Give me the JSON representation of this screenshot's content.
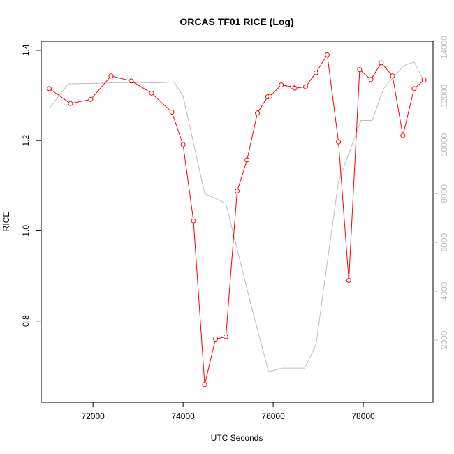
{
  "chart_data": {
    "type": "line",
    "title": "ORCAS TF01 RICE (Log)",
    "xlabel": "UTC Seconds",
    "ylabel": "RICE",
    "xlim": [
      70850,
      79550
    ],
    "ylim": [
      0.62,
      1.42
    ],
    "ylim_right": [
      -550,
      14250
    ],
    "x_ticks": [
      72000,
      74000,
      76000,
      78000
    ],
    "y_ticks": [
      0.8,
      1.0,
      1.2,
      1.4
    ],
    "y_ticks_right": [
      2000,
      4000,
      6000,
      8000,
      10000,
      12000,
      14000
    ],
    "grid": false,
    "series": [
      {
        "color": "#ff0000",
        "axis": "left",
        "marker": "circle",
        "points": [
          [
            71030,
            1.315
          ],
          [
            71500,
            1.282
          ],
          [
            71950,
            1.291
          ],
          [
            72400,
            1.343
          ],
          [
            72850,
            1.332
          ],
          [
            73300,
            1.305
          ],
          [
            73750,
            1.263
          ],
          [
            74000,
            1.191
          ],
          [
            74230,
            1.022
          ],
          [
            74480,
            0.659
          ],
          [
            74720,
            0.76
          ],
          [
            74950,
            0.765
          ],
          [
            75200,
            1.088
          ],
          [
            75420,
            1.157
          ],
          [
            75650,
            1.261
          ],
          [
            75880,
            1.297
          ],
          [
            75930,
            1.298
          ],
          [
            76180,
            1.323
          ],
          [
            76430,
            1.319
          ],
          [
            76480,
            1.316
          ],
          [
            76720,
            1.319
          ],
          [
            76950,
            1.35
          ],
          [
            77200,
            1.39
          ],
          [
            77450,
            1.197
          ],
          [
            77680,
            0.89
          ],
          [
            77920,
            1.357
          ],
          [
            78170,
            1.335
          ],
          [
            78400,
            1.372
          ],
          [
            78650,
            1.343
          ],
          [
            78880,
            1.211
          ],
          [
            79130,
            1.315
          ],
          [
            79350,
            1.334
          ]
        ]
      },
      {
        "color": "#bdbdbd",
        "axis": "right",
        "marker": "none",
        "points": [
          [
            71030,
            11500
          ],
          [
            71450,
            12500
          ],
          [
            72000,
            12520
          ],
          [
            72500,
            12550
          ],
          [
            73000,
            12560
          ],
          [
            73400,
            12540
          ],
          [
            73800,
            12580
          ],
          [
            74000,
            12000
          ],
          [
            74480,
            8000
          ],
          [
            74950,
            7600
          ],
          [
            75500,
            3500
          ],
          [
            75900,
            700
          ],
          [
            76200,
            850
          ],
          [
            76700,
            850
          ],
          [
            76950,
            1800
          ],
          [
            77450,
            8500
          ],
          [
            77950,
            11000
          ],
          [
            78200,
            11000
          ],
          [
            78450,
            12300
          ],
          [
            78900,
            13250
          ],
          [
            79130,
            13400
          ],
          [
            79350,
            12600
          ]
        ]
      }
    ]
  }
}
